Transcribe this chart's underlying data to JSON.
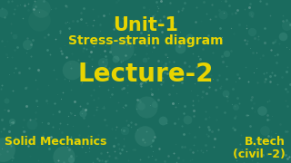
{
  "bg_color": "#1a6b5e",
  "text_color": "#e8d400",
  "line1": "Unit-1",
  "line2": "Stress-strain diagram",
  "line3": "Lecture-2",
  "line4_left": "Solid Mechanics",
  "line4_right_1": "B.tech",
  "line4_right_2": "(civil -2)",
  "line1_fontsize": 15,
  "line2_fontsize": 10,
  "line3_fontsize": 20,
  "line4_fontsize": 9,
  "fig_width": 3.2,
  "fig_height": 1.8,
  "dpi": 100
}
